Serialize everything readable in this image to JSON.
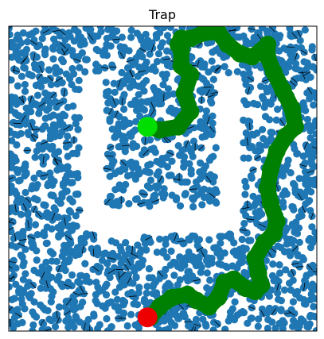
{
  "chart_data": {
    "type": "scatter",
    "title": "Trap",
    "xlabel": "",
    "ylabel": "",
    "xlim": [
      0,
      10
    ],
    "ylim": [
      0,
      10
    ],
    "grid": false,
    "axis_ticks": false,
    "colors": {
      "samples": "#1f77b4",
      "path": "#008000",
      "start": "#00dd00",
      "goal": "#ee0000",
      "background": "#ffffff"
    },
    "obstacle": {
      "shape": "U-trap",
      "outer": [
        2.3,
        7.6,
        3.2,
        8.4
      ],
      "wall_thickness": 0.85
    },
    "start": {
      "x": 4.5,
      "y": 6.7
    },
    "goal": {
      "x": 4.5,
      "y": 0.45
    },
    "path": {
      "x": [
        4.5,
        4.9,
        5.5,
        5.9,
        5.7,
        5.9,
        5.6,
        5.6,
        5.5,
        5.6,
        5.9,
        6.4,
        6.8,
        7.1,
        7.5,
        7.9,
        8.2,
        8.4,
        8.4,
        8.6,
        8.9,
        9.2,
        9.3,
        9.0,
        8.7,
        8.5,
        8.4,
        8.5,
        8.7,
        8.6,
        8.3,
        8.0,
        8.1,
        8.2,
        8.0,
        7.7,
        7.3,
        7.0,
        6.8,
        6.5,
        6.1,
        5.8,
        5.3,
        4.9,
        4.6
      ],
      "y": [
        6.7,
        6.6,
        6.7,
        7.2,
        7.8,
        8.4,
        8.7,
        9.2,
        9.4,
        9.6,
        9.6,
        9.8,
        9.8,
        9.4,
        9.1,
        9.0,
        9.2,
        9.4,
        9.0,
        8.5,
        7.9,
        7.3,
        6.7,
        6.4,
        5.9,
        5.3,
        4.7,
        4.2,
        3.6,
        3.2,
        2.9,
        2.4,
        1.9,
        1.5,
        1.3,
        1.4,
        1.7,
        1.6,
        1.1,
        0.8,
        1.0,
        1.2,
        1.1,
        0.8,
        0.45
      ]
    }
  }
}
